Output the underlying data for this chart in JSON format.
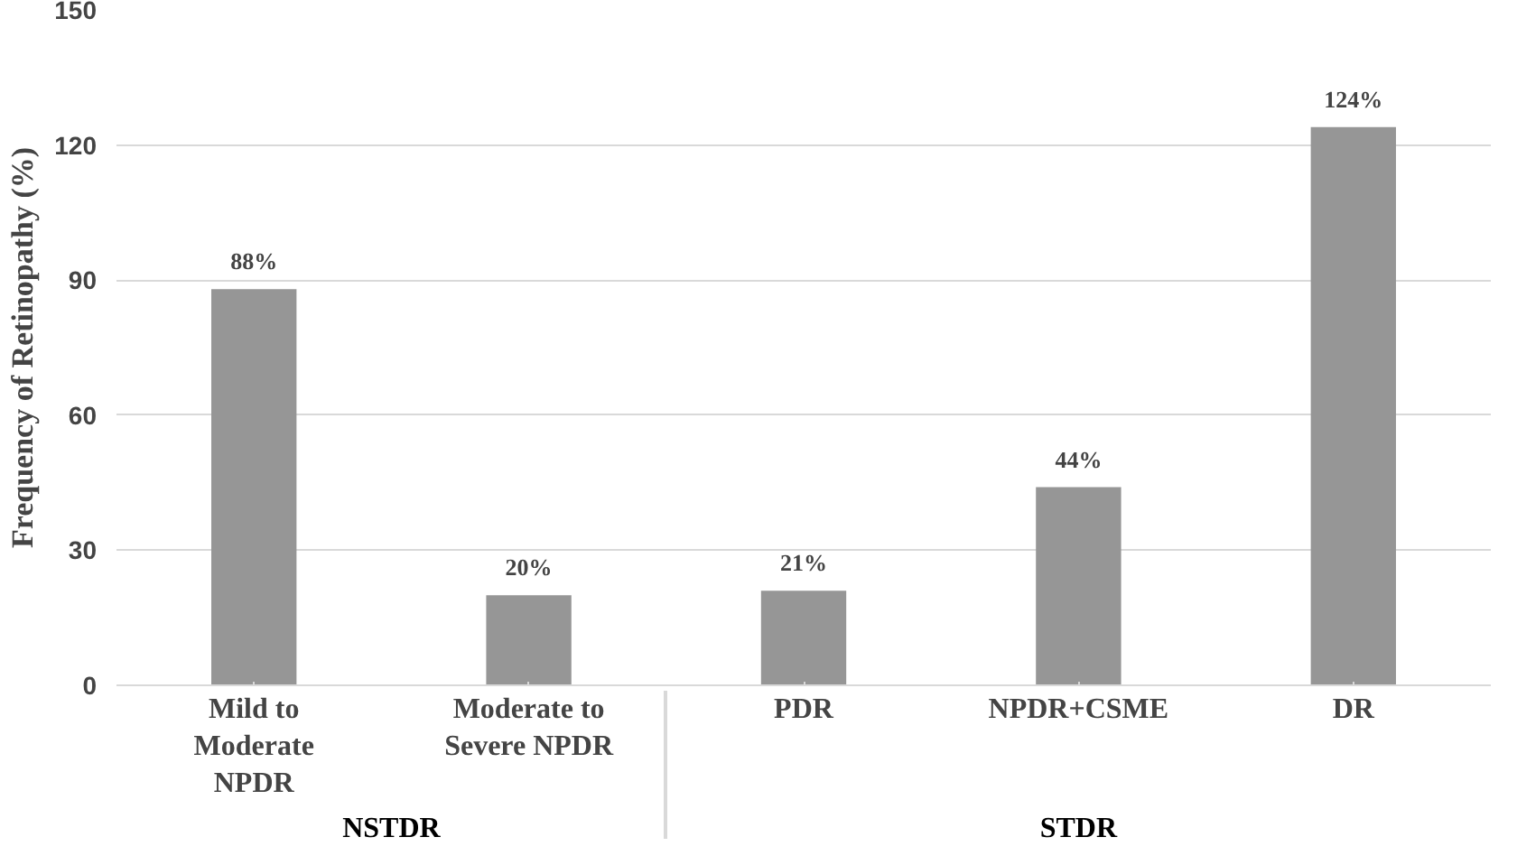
{
  "chart_data": {
    "type": "bar",
    "ylabel": "Frequency of Retinopathy (%)",
    "categories": [
      "Mild to Moderate NPDR",
      "Moderate to Severe NPDR",
      "PDR",
      "NPDR+CSME",
      "DR"
    ],
    "values": [
      88,
      20,
      21,
      44,
      124
    ],
    "color": "#969696",
    "value_labels": [
      "88%",
      "20%",
      "21%",
      "44%",
      "124%"
    ],
    "ylim": [
      0,
      150
    ],
    "yticks": [
      0,
      30,
      60,
      90,
      120,
      150
    ],
    "grid": "y",
    "annotations": [
      "NSTDR",
      "STDR"
    ]
  }
}
